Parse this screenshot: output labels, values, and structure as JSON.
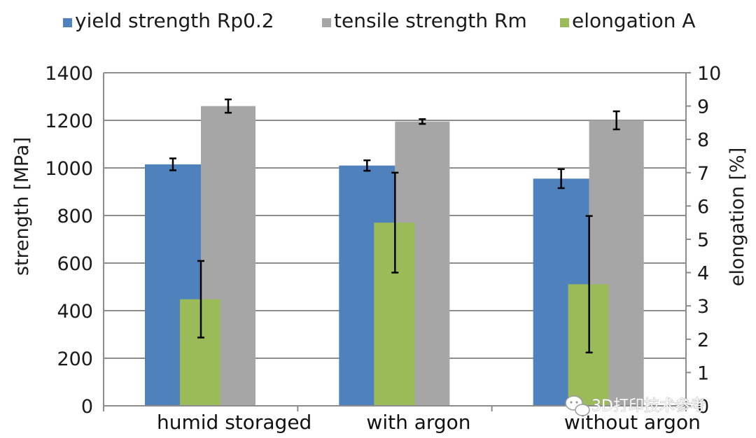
{
  "chart_data": {
    "type": "bar",
    "categories": [
      "humid storaged",
      "with argon",
      "without argon"
    ],
    "series": [
      {
        "name": "yield strength Rp0.2",
        "axis": "left",
        "color": "#4f81bd",
        "values": [
          1015,
          1010,
          955
        ],
        "errors": [
          25,
          22,
          40
        ]
      },
      {
        "name": "tensile strength Rm",
        "axis": "left",
        "color": "#a6a6a6",
        "values": [
          1260,
          1195,
          1200
        ],
        "errors": [
          28,
          10,
          38
        ]
      },
      {
        "name": "elongation A",
        "axis": "right",
        "color": "#9bbb59",
        "values": [
          3.2,
          5.5,
          3.65
        ],
        "errors": [
          1.15,
          1.5,
          2.05
        ]
      }
    ],
    "ylabel": "strength [MPa]",
    "ylabel_right": "elongation [%]",
    "ylim": [
      0,
      1400
    ],
    "ylim_right": [
      0,
      10
    ],
    "yticks": [
      "0",
      "200",
      "400",
      "600",
      "800",
      "1000",
      "1200",
      "1400"
    ],
    "yticks_right": [
      "0",
      "1",
      "2",
      "3",
      "4",
      "5",
      "6",
      "7",
      "8",
      "9",
      "10"
    ],
    "grid": true,
    "legend_position": "top"
  },
  "watermark": {
    "text": "3D打印技术参考",
    "icon": "wechat-icon"
  }
}
